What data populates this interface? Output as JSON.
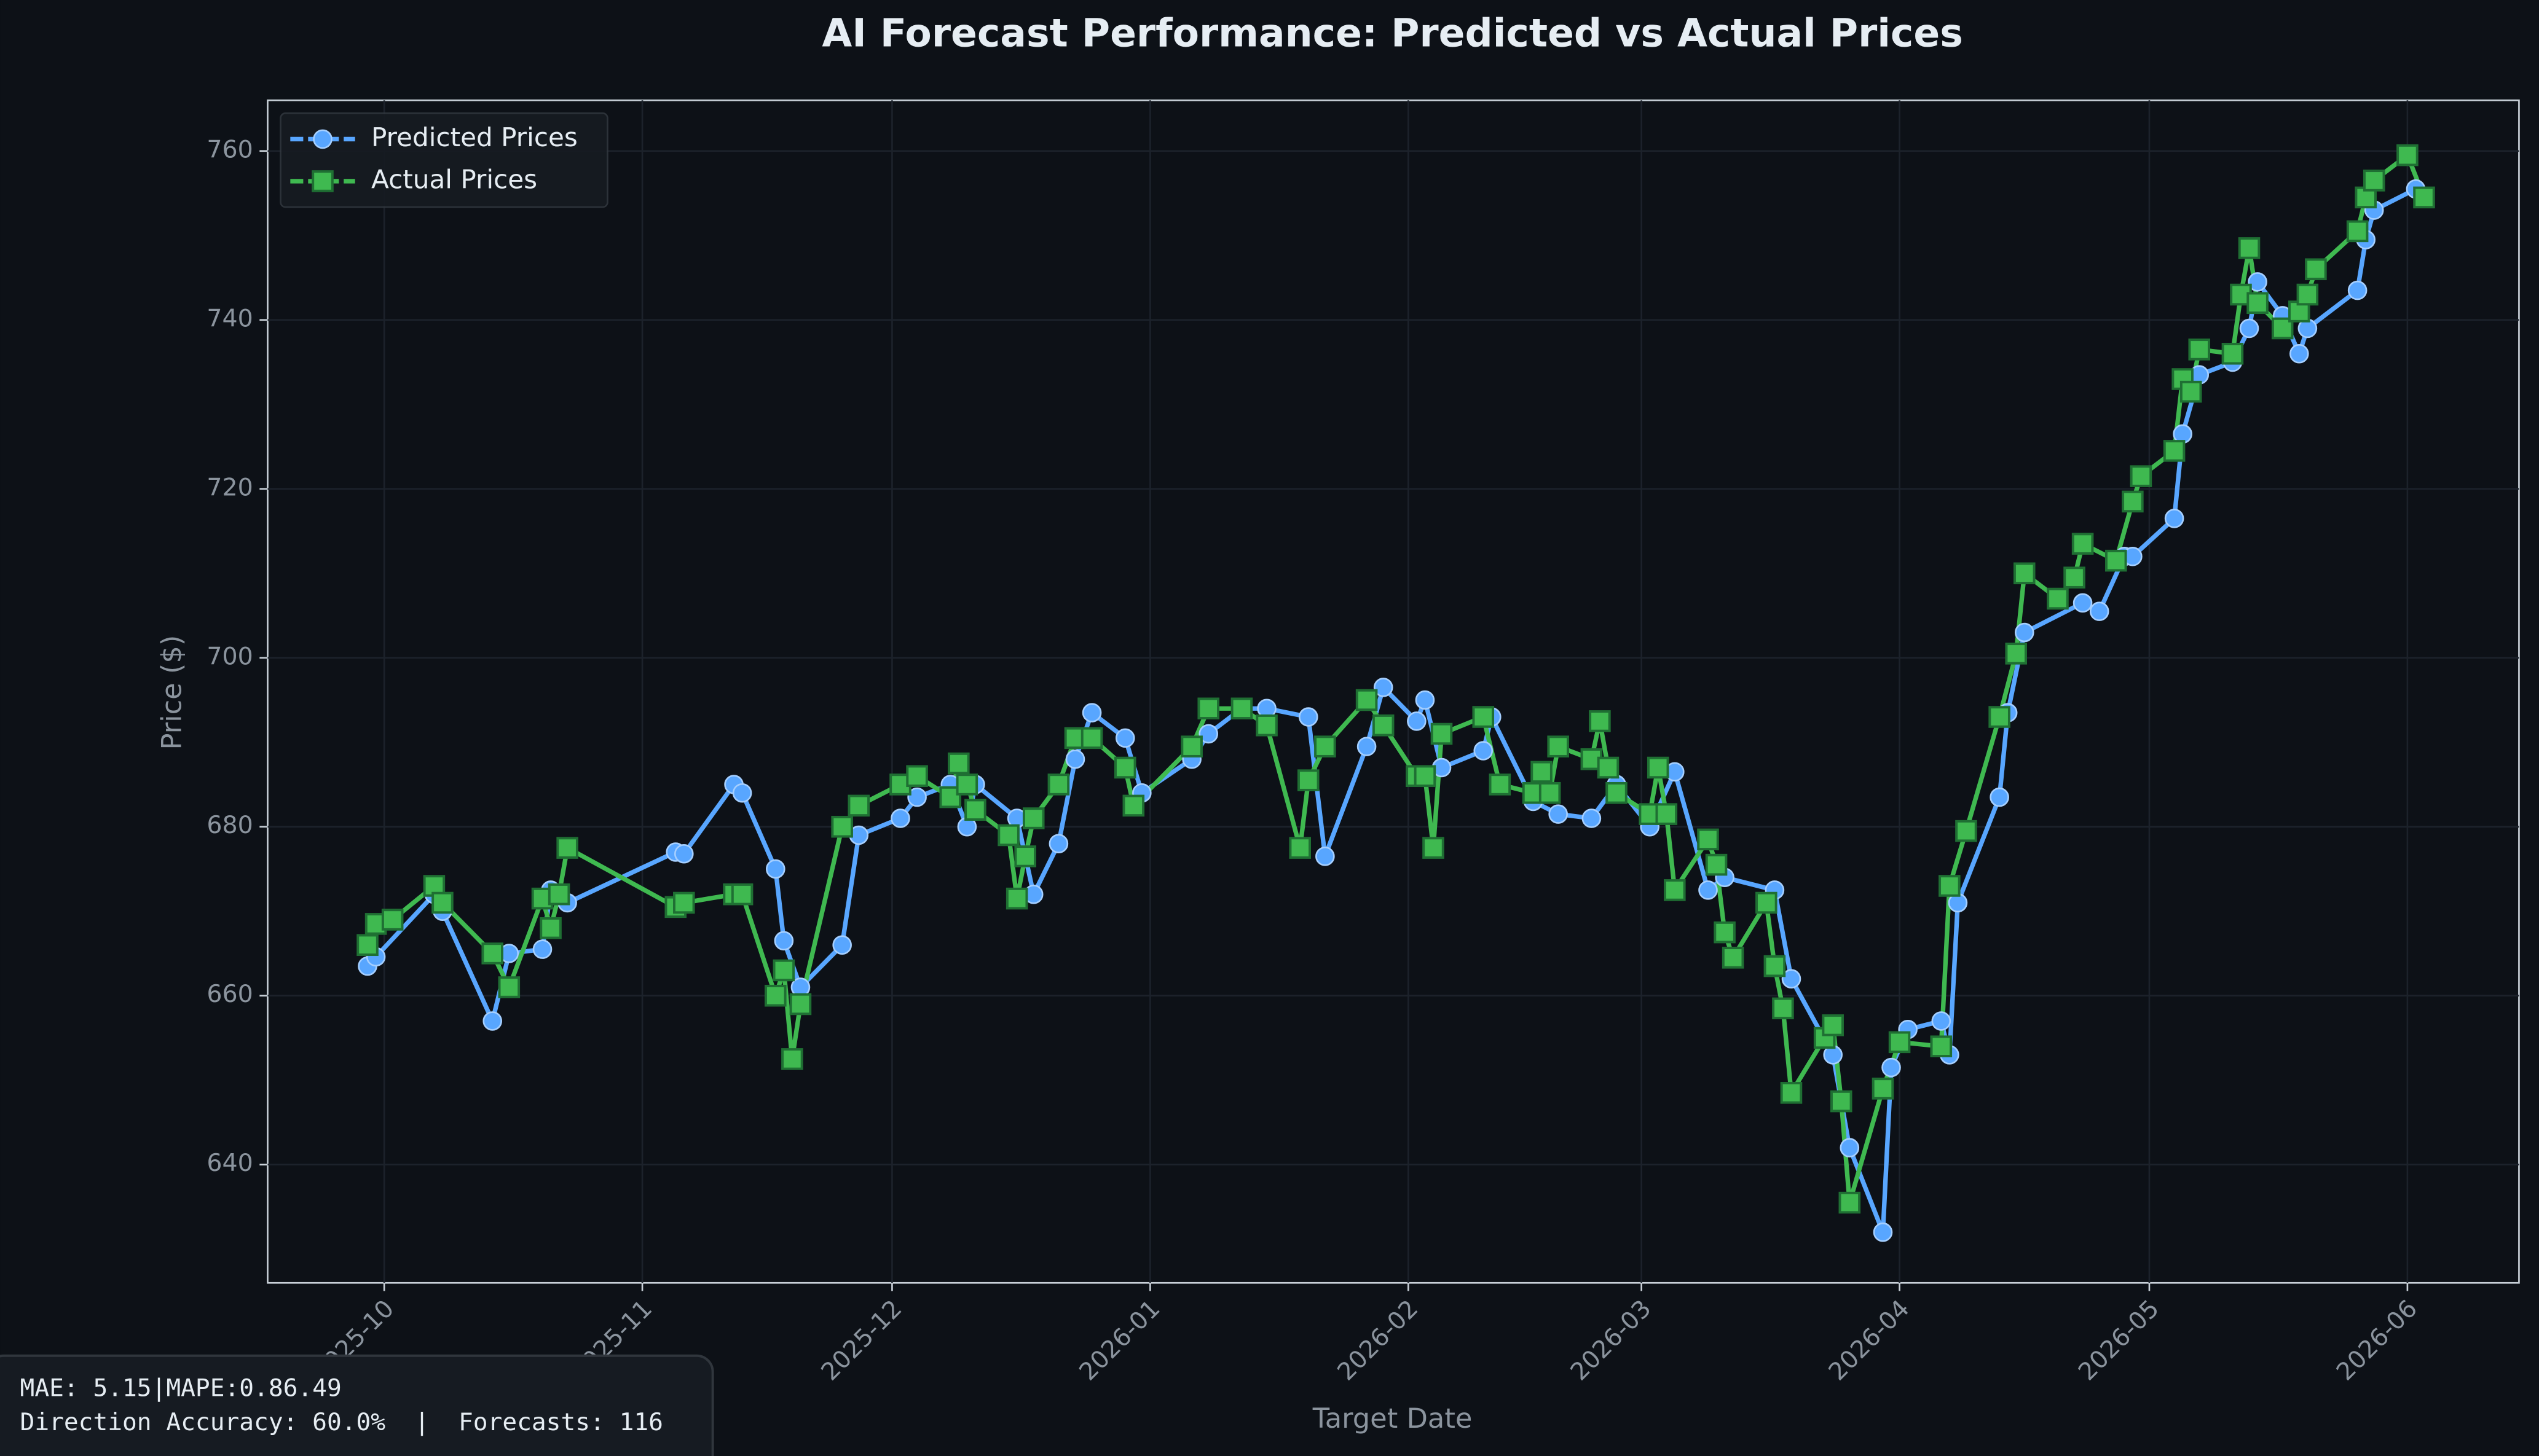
{
  "chart_data": {
    "type": "line",
    "title": "AI Forecast Performance: Predicted vs Actual Prices",
    "x_label": "Target Date",
    "y_label": "Price ($)",
    "xlim": [
      20348,
      20618.4
    ],
    "xticks": [
      {
        "value": 20362,
        "label": "2025-10"
      },
      {
        "value": 20393,
        "label": "2025-11"
      },
      {
        "value": 20423,
        "label": "2025-12"
      },
      {
        "value": 20454,
        "label": "2026-01"
      },
      {
        "value": 20485,
        "label": "2026-02"
      },
      {
        "value": 20513,
        "label": "2026-03"
      },
      {
        "value": 20544,
        "label": "2026-04"
      },
      {
        "value": 20574,
        "label": "2026-05"
      },
      {
        "value": 20605,
        "label": "2026-06"
      }
    ],
    "ylim": [
      626,
      766
    ],
    "yticks": [
      640,
      660,
      680,
      700,
      720,
      740,
      760
    ],
    "grid": true,
    "legend": "upper left",
    "series": [
      {
        "name": "Predicted Prices",
        "color": "#58a6ff",
        "marker": "circle",
        "x": [
          20360,
          20361,
          20368,
          20369,
          20375,
          20377,
          20381,
          20382,
          20384,
          20397,
          20398,
          20404,
          20405,
          20409,
          20410,
          20412,
          20417,
          20419,
          20424,
          20426,
          20430,
          20432,
          20433,
          20438,
          20440,
          20443,
          20445,
          20447,
          20451,
          20453,
          20459,
          20461,
          20465,
          20468,
          20473,
          20475,
          20480,
          20482,
          20486,
          20487,
          20489,
          20494,
          20495,
          20500,
          20503,
          20507,
          20510,
          20514,
          20517,
          20521,
          20523,
          20529,
          20531,
          20536,
          20538,
          20542,
          20543,
          20545,
          20549,
          20550,
          20551,
          20556,
          20557,
          20559,
          20566,
          20568,
          20571,
          20572,
          20577,
          20578,
          20580,
          20584,
          20586,
          20587,
          20590,
          20592,
          20593,
          20599,
          20600,
          20601,
          20606
        ],
        "values": [
          663.5,
          664.6,
          672,
          670,
          657,
          665,
          665.5,
          672.5,
          671,
          677,
          676.8,
          685,
          684,
          675,
          666.5,
          661,
          666,
          679,
          681,
          683.5,
          685,
          680,
          685,
          681,
          672,
          678,
          688,
          693.5,
          690.5,
          684,
          688,
          691,
          694,
          694,
          693,
          676.5,
          689.5,
          696.5,
          692.5,
          695,
          687,
          689,
          693,
          683,
          681.5,
          681,
          685,
          680,
          686.5,
          672.5,
          674,
          672.5,
          662,
          653,
          642,
          632,
          651.5,
          656,
          657,
          653,
          671,
          683.5,
          693.5,
          703,
          706.5,
          705.5,
          712,
          712,
          716.5,
          726.5,
          733.5,
          735,
          739,
          744.5,
          740.5,
          736,
          739,
          743.5,
          749.5,
          753,
          755.5
        ]
      },
      {
        "name": "Actual Prices",
        "color": "#3fb950",
        "marker": "square",
        "x": [
          20360,
          20361,
          20363,
          20368,
          20369,
          20375,
          20377,
          20381,
          20382,
          20383,
          20384,
          20397,
          20398,
          20404,
          20405,
          20409,
          20410,
          20411,
          20412,
          20417,
          20419,
          20424,
          20426,
          20430,
          20431,
          20432,
          20433,
          20437,
          20438,
          20439,
          20440,
          20443,
          20445,
          20447,
          20451,
          20452,
          20459,
          20461,
          20465,
          20468,
          20472,
          20473,
          20475,
          20480,
          20482,
          20486,
          20487,
          20488,
          20489,
          20494,
          20496,
          20500,
          20501,
          20502,
          20503,
          20507,
          20508,
          20509,
          20510,
          20514,
          20515,
          20516,
          20517,
          20521,
          20522,
          20523,
          20524,
          20528,
          20529,
          20530,
          20531,
          20535,
          20536,
          20537,
          20538,
          20542,
          20544,
          20549,
          20550,
          20552,
          20556,
          20558,
          20559,
          20563,
          20565,
          20566,
          20570,
          20572,
          20573,
          20577,
          20578,
          20579,
          20580,
          20584,
          20585,
          20586,
          20587,
          20590,
          20592,
          20593,
          20594,
          20599,
          20600,
          20601,
          20605,
          20607
        ],
        "values": [
          666,
          668.5,
          669,
          673,
          671,
          665,
          661,
          671.5,
          668,
          672,
          677.5,
          670.5,
          671,
          672,
          672,
          660,
          663,
          652.5,
          659,
          680,
          682.5,
          685,
          686,
          683.5,
          687.5,
          685,
          682,
          679,
          671.5,
          676.5,
          681,
          685,
          690.5,
          690.5,
          687,
          682.5,
          689.5,
          694,
          694,
          692,
          677.5,
          685.5,
          689.5,
          695,
          692,
          686,
          686,
          677.5,
          691,
          693,
          685,
          684,
          686.5,
          684,
          689.5,
          688,
          692.5,
          687,
          684,
          681.5,
          687,
          681.5,
          672.5,
          678.5,
          675.5,
          667.5,
          664.5,
          671,
          663.5,
          658.5,
          648.5,
          655,
          656.5,
          647.5,
          635.5,
          649,
          654.5,
          654,
          673,
          679.5,
          693,
          700.5,
          710,
          707,
          709.5,
          713.5,
          711.5,
          718.5,
          721.5,
          724.5,
          733,
          731.5,
          736.5,
          736,
          743,
          748.5,
          742,
          739,
          741,
          743,
          746,
          750.5,
          754.5,
          756.5,
          759.5,
          754.5
        ]
      }
    ]
  },
  "footer": {
    "lines": [
      "MAE: 5.15|MAPE:0.86.49",
      "Direction Accuracy: 60.0%  |  Forecasts: 116"
    ]
  }
}
